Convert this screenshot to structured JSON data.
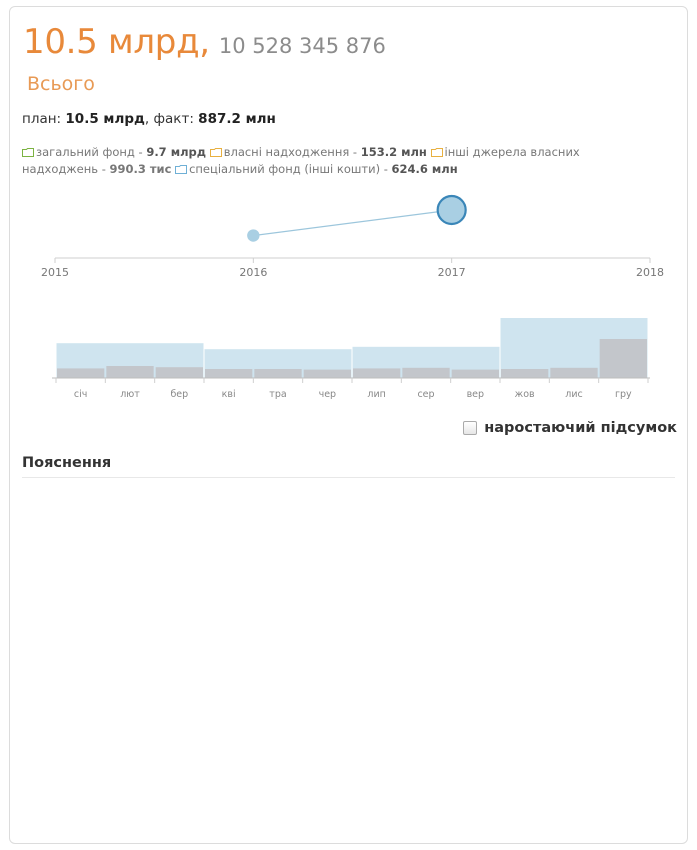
{
  "header": {
    "amount_short": "10.5 млрд,",
    "amount_exact": "10 528 345 876",
    "subtitle": "Всього"
  },
  "plan_fact": {
    "plan_label": "план: ",
    "plan_value": "10.5 млрд",
    "fact_label": ", факт: ",
    "fact_value": "887.2 млн"
  },
  "funds": [
    {
      "label": "загальний фонд - ",
      "value": "9.7 млрд",
      "icon": "folder-icon",
      "color": "#7cb342"
    },
    {
      "label": "власні надходження - ",
      "value": "153.2 млн",
      "icon": "folder-icon",
      "color": "#e8b040"
    },
    {
      "label": "інші джерела власних надходжень - ",
      "value": "990.3 тис",
      "icon": "folder-icon",
      "color": "#e8b040"
    },
    {
      "label": "спеціальний фонд (інші кошти) - ",
      "value": "624.6 млн",
      "icon": "folder-icon",
      "color": "#6fb0d6"
    }
  ],
  "chart_data": [
    {
      "type": "scatter",
      "x": [
        2016,
        2017
      ],
      "y": [
        887.2,
        10528.3
      ],
      "xlim": [
        2015,
        2018
      ],
      "tick_labels": [
        "2015",
        "2016",
        "2017",
        "2018"
      ],
      "color": "#a9cfe3",
      "stroke": "#3a86b8",
      "title": "",
      "xlabel": "",
      "ylabel": ""
    },
    {
      "type": "bar",
      "categories": [
        "січ",
        "лют",
        "бер",
        "кві",
        "тра",
        "чер",
        "лип",
        "сер",
        "вер",
        "жов",
        "лис",
        "гру"
      ],
      "series": [
        {
          "values": [
            58,
            58,
            58,
            48,
            48,
            48,
            52,
            52,
            52,
            100,
            100,
            100
          ],
          "color": "#cfe4ef"
        },
        {
          "values": [
            16,
            20,
            18,
            15,
            15,
            14,
            16,
            17,
            14,
            15,
            17,
            65
          ],
          "color": "#c3c6cb"
        }
      ],
      "ylim": [
        0,
        100
      ],
      "title": "",
      "xlabel": "",
      "ylabel": ""
    }
  ],
  "controls": {
    "cumulative_label": "наростаючий підсумок"
  },
  "section": {
    "explanations_title": "Пояснення"
  }
}
